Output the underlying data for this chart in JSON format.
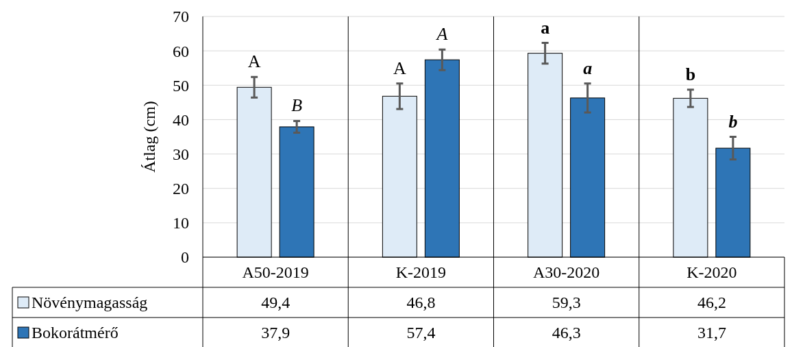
{
  "chart_data": {
    "type": "bar",
    "ylabel": "Átlag (cm)",
    "categories": [
      "A50-2019",
      "K-2019",
      "A30-2020",
      "K-2020"
    ],
    "series": [
      {
        "name": "Növénymagasság",
        "color": "#deebf7",
        "values": [
          49.4,
          46.8,
          59.3,
          46.2
        ],
        "value_labels": [
          "49,4",
          "46,8",
          "59,3",
          "46,2"
        ],
        "errors": [
          3,
          3.7,
          3,
          2.5
        ]
      },
      {
        "name": "Bokorátmérő",
        "color": "#2e75b6",
        "values": [
          37.9,
          57.4,
          46.3,
          31.7
        ],
        "value_labels": [
          "37,9",
          "57,4",
          "46,3",
          "31,7"
        ],
        "errors": [
          1.7,
          3,
          4.2,
          3.3
        ]
      }
    ],
    "ylim": [
      0,
      70
    ],
    "yticks": [
      0,
      10,
      20,
      30,
      40,
      50,
      60,
      70
    ],
    "grid": "y",
    "legend": "bottom",
    "annotations": [
      "A",
      "B",
      "A",
      "A",
      "a",
      "a",
      "b",
      "b"
    ]
  }
}
